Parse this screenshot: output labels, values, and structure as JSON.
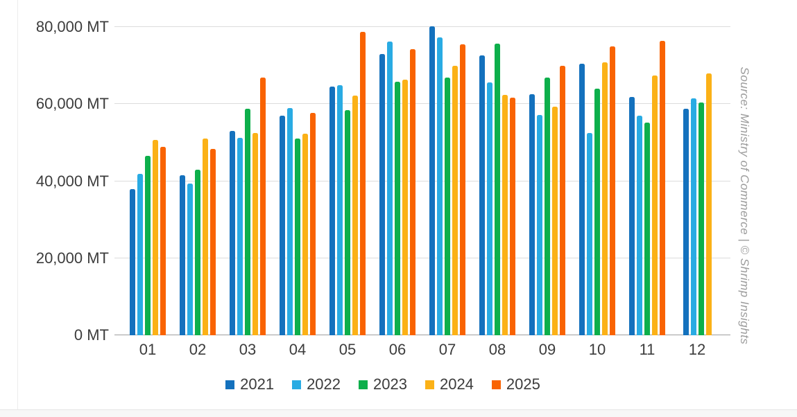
{
  "chart_data": {
    "type": "bar",
    "title": "",
    "unit": "MT",
    "xlabel": "",
    "ylabel": "",
    "ylim": [
      0,
      84000
    ],
    "grid": true,
    "legend_position": "bottom",
    "categories": [
      "01",
      "02",
      "03",
      "04",
      "05",
      "06",
      "07",
      "08",
      "09",
      "10",
      "11",
      "12"
    ],
    "yticks": [
      {
        "value": 0,
        "label": "0 MT"
      },
      {
        "value": 20000,
        "label": "20,000 MT"
      },
      {
        "value": 40000,
        "label": "40,000 MT"
      },
      {
        "value": 60000,
        "label": "60,000 MT"
      },
      {
        "value": 80000,
        "label": "80,000 MT"
      }
    ],
    "series": [
      {
        "name": "2021",
        "color": "#1471bd",
        "values": [
          38000,
          41500,
          53000,
          57000,
          64600,
          73000,
          80200,
          72600,
          62600,
          70500,
          61800,
          58800
        ]
      },
      {
        "name": "2022",
        "color": "#29abe3",
        "values": [
          42000,
          39400,
          51200,
          59000,
          64900,
          76300,
          77300,
          65600,
          57200,
          52500,
          57000,
          61500
        ]
      },
      {
        "name": "2023",
        "color": "#0daf4b",
        "values": [
          46500,
          43000,
          58800,
          51000,
          58500,
          65900,
          66900,
          75800,
          66900,
          64000,
          55300,
          60400
        ]
      },
      {
        "name": "2024",
        "color": "#fbb117",
        "values": [
          50800,
          51000,
          52600,
          52300,
          62300,
          66300,
          70000,
          62500,
          59300,
          70800,
          67500,
          68000
        ]
      },
      {
        "name": "2025",
        "color": "#f96302",
        "values": [
          49000,
          48400,
          67000,
          57800,
          78800,
          74300,
          75500,
          61700,
          70000,
          75000,
          76500,
          null
        ]
      }
    ]
  },
  "source_note": "Source: Ministry of Commerce | © Shrimp Insights",
  "colors": {
    "gridline": "#dcdcdc",
    "axis_line": "#9e9e9e",
    "label_text": "#3c3c3c",
    "source_text": "#9c9c9c",
    "background": "#ffffff"
  }
}
